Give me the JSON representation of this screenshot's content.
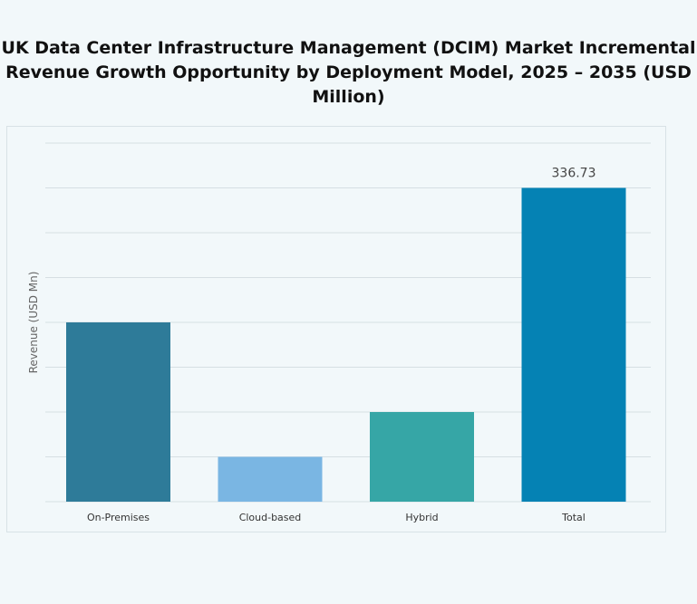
{
  "chart_data": {
    "type": "bar",
    "title": "UK Data Center Infrastructure  Management (DCIM) Market Incremental Revenue Growth Opportunity by Deployment Model, 2025 – 2035 (USD Million)",
    "xlabel": "",
    "ylabel": "Revenue (USD Mn)",
    "categories": [
      "On-Premises",
      "Cloud-based",
      "Hybrid",
      "Total"
    ],
    "values": [
      192.42,
      48.1,
      96.21,
      336.73
    ],
    "data_labels": [
      "",
      "",
      "",
      "336.73"
    ],
    "colors": [
      "#2e7b99",
      "#7ab6e3",
      "#36a6a6",
      "#0582b4"
    ],
    "ylim": [
      0,
      384.83
    ],
    "grid": true,
    "y_tick_labels_shown": false
  }
}
